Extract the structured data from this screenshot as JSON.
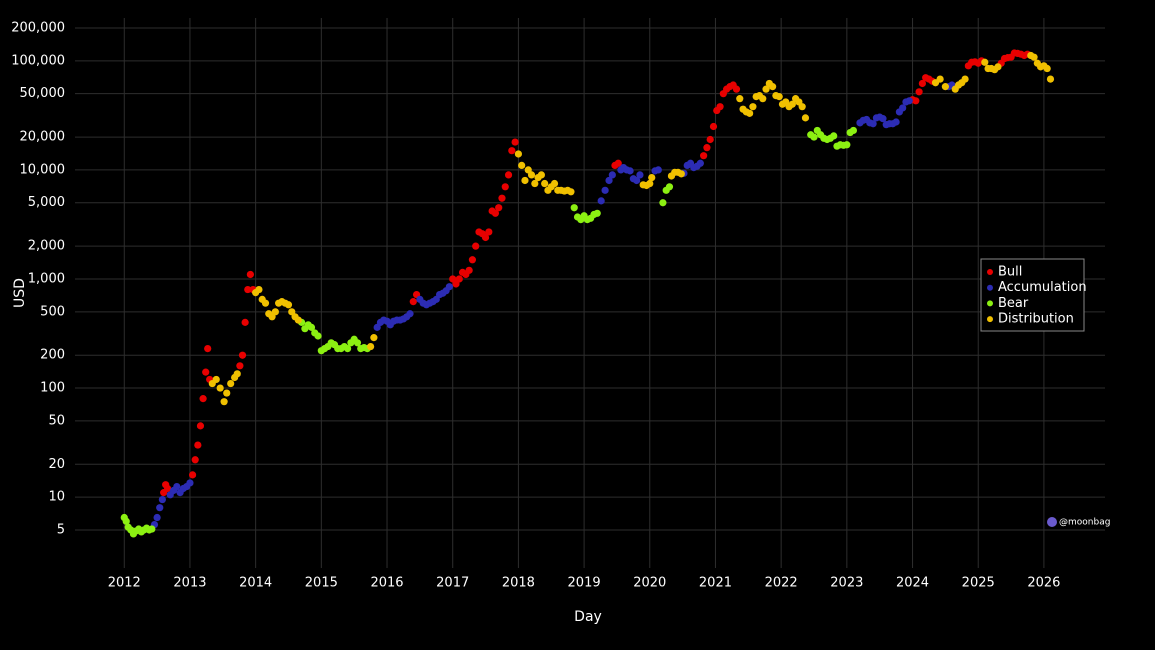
{
  "chart_data": {
    "type": "scatter",
    "x_label": "Day",
    "y_label": "USD",
    "y_log": true,
    "grid": true,
    "legend_position": "right",
    "watermark": "@moonbag",
    "xlim": [
      2011.25,
      2026.93
    ],
    "xticks": [
      2012,
      2013,
      2014,
      2015,
      2016,
      2017,
      2018,
      2019,
      2020,
      2021,
      2022,
      2023,
      2024,
      2025,
      2026
    ],
    "ylim": [
      2.24,
      247000
    ],
    "yticks": [
      5,
      10,
      20,
      50,
      100,
      200,
      500,
      {
        "value": 1000,
        "label": "1,000"
      },
      {
        "value": 2000,
        "label": "2,000"
      },
      {
        "value": 5000,
        "label": "5,000"
      },
      {
        "value": 10000,
        "label": "10,000"
      },
      {
        "value": 20000,
        "label": "20,000"
      },
      {
        "value": 50000,
        "label": "50,000"
      },
      {
        "value": 100000,
        "label": "100,000"
      },
      {
        "value": 200000,
        "label": "200,000"
      }
    ],
    "series": [
      {
        "name": "Bull",
        "color": "#e80000",
        "x": [
          2012.6,
          2012.63,
          2012.66,
          2013.04,
          2013.08,
          2013.12,
          2013.16,
          2013.2,
          2013.24,
          2013.27,
          2013.3,
          2013.76,
          2013.8,
          2013.84,
          2013.88,
          2013.92,
          2013.96,
          2016.4,
          2016.45,
          2017.0,
          2017.05,
          2017.1,
          2017.15,
          2017.2,
          2017.25,
          2017.3,
          2017.35,
          2017.4,
          2017.45,
          2017.5,
          2017.55,
          2017.6,
          2017.65,
          2017.7,
          2017.75,
          2017.8,
          2017.85,
          2017.9,
          2017.95,
          2019.47,
          2019.52,
          2020.82,
          2020.87,
          2020.92,
          2020.97,
          2021.02,
          2021.07,
          2021.12,
          2021.17,
          2021.22,
          2021.27,
          2021.32,
          2024.0,
          2024.05,
          2024.1,
          2024.15,
          2024.2,
          2024.25,
          2024.3,
          2024.85,
          2024.9,
          2024.95,
          2025.0,
          2025.05,
          2025.35,
          2025.4,
          2025.45,
          2025.5,
          2025.55,
          2025.6,
          2025.65,
          2025.7,
          2025.75
        ],
        "values": [
          11,
          13,
          12,
          16,
          22,
          30,
          45,
          80,
          140,
          230,
          120,
          160,
          200,
          400,
          800,
          1100,
          800,
          620,
          720,
          1000,
          900,
          1000,
          1150,
          1100,
          1200,
          1500,
          2000,
          2700,
          2600,
          2400,
          2700,
          4200,
          4000,
          4500,
          5500,
          7000,
          9000,
          15000,
          18000,
          11000,
          11500,
          13500,
          16000,
          19000,
          25000,
          35000,
          38000,
          50000,
          55000,
          58000,
          60000,
          55000,
          44000,
          43000,
          52000,
          62000,
          70000,
          68000,
          65000,
          90000,
          97000,
          98000,
          95000,
          100000,
          95000,
          105000,
          107000,
          108000,
          118000,
          117000,
          115000,
          112000,
          115000
        ]
      },
      {
        "name": "Accumulation",
        "color": "#2c2cb4",
        "x": [
          2012.46,
          2012.5,
          2012.54,
          2012.58,
          2012.7,
          2012.75,
          2012.8,
          2012.85,
          2012.9,
          2012.95,
          2013.0,
          2015.85,
          2015.9,
          2015.95,
          2016.0,
          2016.05,
          2016.1,
          2016.15,
          2016.2,
          2016.25,
          2016.3,
          2016.35,
          2016.5,
          2016.55,
          2016.6,
          2016.65,
          2016.7,
          2016.75,
          2016.8,
          2016.85,
          2016.9,
          2016.95,
          2019.26,
          2019.32,
          2019.38,
          2019.43,
          2019.56,
          2019.6,
          2019.65,
          2019.7,
          2019.75,
          2019.8,
          2019.85,
          2020.08,
          2020.13,
          2020.52,
          2020.57,
          2020.62,
          2020.67,
          2020.72,
          2020.77,
          2023.2,
          2023.25,
          2023.3,
          2023.35,
          2023.4,
          2023.45,
          2023.5,
          2023.55,
          2023.6,
          2023.65,
          2023.7,
          2023.75,
          2023.8,
          2023.85,
          2023.9,
          2023.95,
          2024.55,
          2024.6
        ],
        "values": [
          5.6,
          6.5,
          8,
          9.5,
          10.5,
          11.5,
          12.5,
          11,
          12,
          12.5,
          13.5,
          360,
          400,
          420,
          410,
          380,
          410,
          420,
          420,
          430,
          450,
          480,
          650,
          600,
          580,
          600,
          620,
          650,
          720,
          740,
          780,
          850,
          5200,
          6500,
          8000,
          9000,
          10000,
          10500,
          10000,
          9800,
          8300,
          8000,
          9000,
          9800,
          10000,
          9300,
          11000,
          11500,
          10500,
          10800,
          11500,
          27000,
          28500,
          29000,
          27000,
          26500,
          30000,
          30500,
          29500,
          26000,
          26500,
          26500,
          27500,
          34000,
          37000,
          42000,
          43000,
          58000,
          60000
        ]
      },
      {
        "name": "Bear",
        "color": "#8cf012",
        "x": [
          2012.0,
          2012.03,
          2012.06,
          2012.1,
          2012.14,
          2012.18,
          2012.22,
          2012.26,
          2012.3,
          2012.34,
          2012.38,
          2012.42,
          2014.7,
          2014.75,
          2014.8,
          2014.85,
          2014.9,
          2014.95,
          2015.0,
          2015.05,
          2015.1,
          2015.15,
          2015.2,
          2015.25,
          2015.3,
          2015.35,
          2015.4,
          2015.45,
          2015.5,
          2015.55,
          2015.6,
          2015.65,
          2015.7,
          2018.85,
          2018.9,
          2018.95,
          2019.0,
          2019.05,
          2019.1,
          2019.15,
          2019.2,
          2020.2,
          2020.25,
          2020.3,
          2022.45,
          2022.5,
          2022.55,
          2022.6,
          2022.65,
          2022.7,
          2022.75,
          2022.8,
          2022.85,
          2022.9,
          2022.95,
          2023.0,
          2023.05,
          2023.1
        ],
        "values": [
          6.5,
          6,
          5.3,
          5,
          4.6,
          4.9,
          5.1,
          4.8,
          5,
          5.2,
          5,
          5.1,
          400,
          350,
          380,
          360,
          320,
          300,
          220,
          230,
          240,
          260,
          250,
          230,
          230,
          240,
          230,
          260,
          280,
          260,
          230,
          235,
          230,
          4500,
          3700,
          3500,
          3800,
          3500,
          3600,
          3900,
          4000,
          5000,
          6500,
          7000,
          21000,
          20000,
          23000,
          21000,
          19500,
          19000,
          19500,
          20500,
          16500,
          17000,
          16800,
          17000,
          22000,
          23000
        ]
      },
      {
        "name": "Distribution",
        "color": "#f0c000",
        "x": [
          2013.34,
          2013.4,
          2013.46,
          2013.52,
          2013.56,
          2013.62,
          2013.68,
          2013.72,
          2014.0,
          2014.05,
          2014.1,
          2014.15,
          2014.2,
          2014.25,
          2014.3,
          2014.35,
          2014.4,
          2014.45,
          2014.5,
          2014.55,
          2014.6,
          2014.65,
          2015.75,
          2015.8,
          2018.0,
          2018.05,
          2018.1,
          2018.15,
          2018.2,
          2018.25,
          2018.3,
          2018.35,
          2018.4,
          2018.45,
          2018.5,
          2018.55,
          2018.6,
          2018.65,
          2018.7,
          2018.75,
          2018.8,
          2019.9,
          2019.95,
          2020.0,
          2020.03,
          2020.33,
          2020.38,
          2020.43,
          2020.48,
          2021.37,
          2021.42,
          2021.47,
          2021.52,
          2021.57,
          2021.62,
          2021.67,
          2021.72,
          2021.77,
          2021.82,
          2021.87,
          2021.92,
          2021.97,
          2022.02,
          2022.07,
          2022.12,
          2022.17,
          2022.22,
          2022.27,
          2022.32,
          2022.37,
          2024.35,
          2024.42,
          2024.5,
          2024.65,
          2024.7,
          2024.75,
          2024.8,
          2025.1,
          2025.15,
          2025.2,
          2025.25,
          2025.3,
          2025.8,
          2025.85,
          2025.9,
          2025.95,
          2026.0,
          2026.05,
          2026.1
        ],
        "values": [
          110,
          120,
          100,
          75,
          90,
          110,
          125,
          135,
          750,
          800,
          650,
          600,
          480,
          450,
          500,
          600,
          620,
          600,
          580,
          500,
          450,
          420,
          240,
          290,
          14000,
          11000,
          8000,
          10000,
          9000,
          7500,
          8500,
          9000,
          7500,
          6500,
          7000,
          7500,
          6500,
          6500,
          6400,
          6500,
          6300,
          7300,
          7200,
          7500,
          8500,
          8800,
          9500,
          9500,
          9200,
          45000,
          36000,
          34000,
          33000,
          38000,
          47000,
          48000,
          45000,
          55000,
          62000,
          58000,
          48000,
          47000,
          40000,
          42000,
          38000,
          40000,
          45000,
          42000,
          38000,
          30000,
          63000,
          68000,
          58000,
          55000,
          60000,
          63000,
          68000,
          97000,
          85000,
          85000,
          83000,
          88000,
          112000,
          108000,
          95000,
          88000,
          90000,
          85000,
          68000
        ]
      }
    ]
  }
}
